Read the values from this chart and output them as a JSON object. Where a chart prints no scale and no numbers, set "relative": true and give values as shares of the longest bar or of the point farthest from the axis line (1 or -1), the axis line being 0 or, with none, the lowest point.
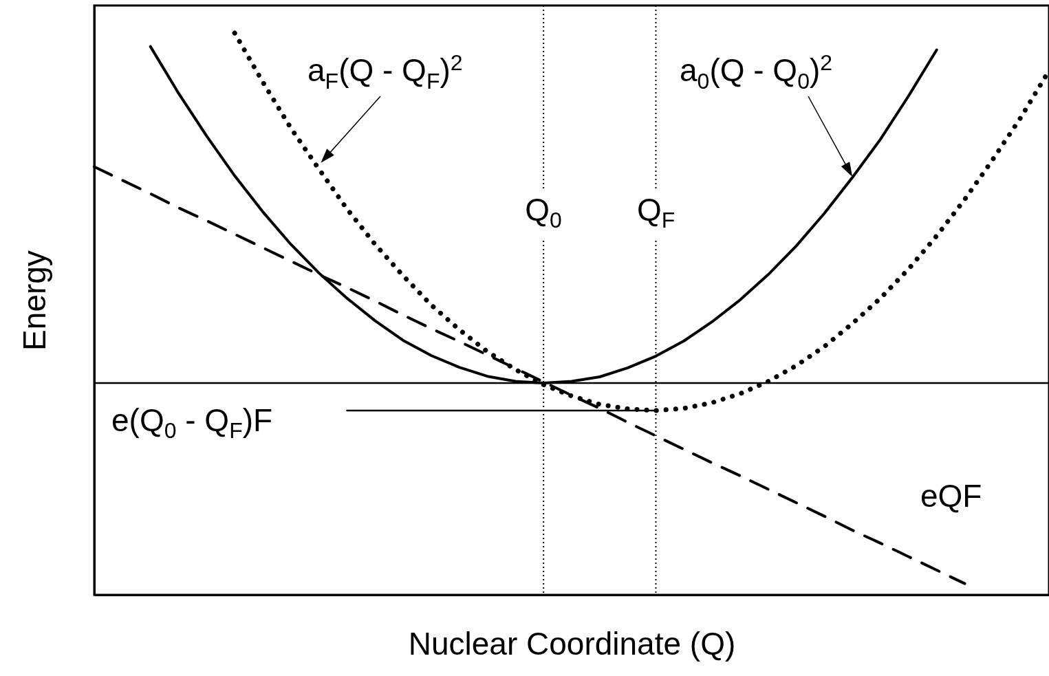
{
  "chart_data": {
    "type": "line",
    "relative": true,
    "xlabel": "Nuclear Coordinate (Q)",
    "ylabel": "Energy",
    "tick_labels": "x",
    "categories": [
      null,
      null,
      null,
      null,
      null,
      null,
      null,
      null,
      null,
      null,
      null,
      null,
      null,
      null,
      null,
      null,
      "Q$_{0}$",
      null,
      null,
      null,
      "Q$_{F}$",
      null,
      null,
      null,
      null,
      null,
      null,
      null,
      null,
      null,
      null,
      null,
      null,
      null,
      null
    ],
    "series": [
      {
        "name": "a$_{0}$(Q - Q$_{0}$)$^{2}$",
        "color": "#000000",
        "line_style": "solid",
        "values": [
          null,
          null,
          0.976,
          0.893,
          0.817,
          0.746,
          0.682,
          0.624,
          0.573,
          0.528,
          0.488,
          0.453,
          0.426,
          0.405,
          0.389,
          0.38,
          0.377,
          0.38,
          0.388,
          0.404,
          0.425,
          0.452,
          0.486,
          0.525,
          0.57,
          0.621,
          0.679,
          0.743,
          0.811,
          0.888,
          0.97,
          null,
          null,
          null,
          null
        ]
      },
      {
        "name": "a$_{F}$(Q - Q$_{F}$)$^{2}$",
        "color": "#000000",
        "line_style": "dotted",
        "values": [
          null,
          null,
          null,
          null,
          null,
          1,
          0.913,
          0.831,
          0.758,
          0.687,
          0.624,
          0.568,
          0.516,
          0.472,
          0.433,
          0.401,
          0.374,
          0.354,
          0.339,
          0.331,
          0.328,
          0.332,
          0.342,
          0.358,
          0.38,
          0.408,
          0.442,
          0.483,
          0.528,
          0.58,
          0.639,
          0.704,
          0.775,
          0.85,
          0.933
        ]
      },
      {
        "name": "eQF",
        "color": "#000000",
        "line_style": "dashed",
        "values": [
          0.762,
          0.738,
          0.714,
          0.689,
          0.666,
          0.642,
          0.618,
          0.594,
          0.57,
          0.547,
          0.523,
          0.498,
          0.474,
          0.451,
          0.427,
          0.403,
          0.379,
          0.355,
          0.332,
          0.307,
          0.283,
          0.259,
          0.235,
          0.212,
          0.188,
          0.164,
          0.14,
          0.115,
          0.092,
          0.068,
          0.044,
          0.02,
          null,
          null,
          null
        ]
      },
      {
        "color": "#000000",
        "line_style": "solid",
        "values": [
          0.377,
          0.377,
          0.377,
          0.377,
          0.377,
          0.377,
          0.377,
          0.377,
          0.377,
          0.377,
          0.377,
          0.377,
          0.377,
          0.377,
          0.377,
          0.377,
          0.377,
          0.377,
          0.377,
          0.377,
          0.377,
          0.377,
          0.377,
          0.377,
          0.377,
          0.377,
          0.377,
          0.377,
          0.377,
          0.377,
          0.377,
          0.377,
          0.377,
          0.377,
          0.377
        ]
      },
      {
        "name": "e(Q$_{0}$ - Q$_{F}$)F",
        "color": "#000000",
        "line_style": "solid",
        "values": [
          null,
          null,
          null,
          null,
          null,
          null,
          null,
          null,
          null,
          0.328,
          0.328,
          0.328,
          0.328,
          0.328,
          0.328,
          0.328,
          0.328,
          0.328,
          0.328,
          0.328,
          0.328,
          null,
          null,
          null,
          null,
          null,
          null,
          null,
          null,
          null,
          null,
          null,
          null,
          null,
          null
        ]
      }
    ],
    "ref_lines": [
      {
        "axis": "x",
        "value": "Q$_{0}$",
        "color": "#000000",
        "line_style": "dotted"
      },
      {
        "axis": "x",
        "value": "Q$_{F}$",
        "color": "#000000",
        "line_style": "dotted"
      }
    ]
  }
}
